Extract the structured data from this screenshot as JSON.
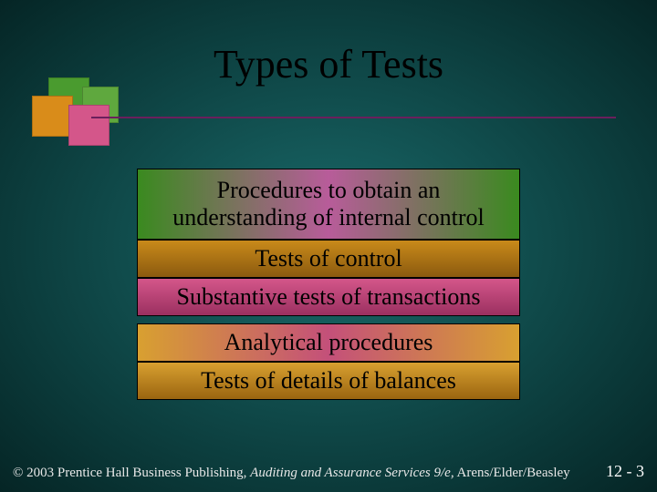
{
  "title": "Types of Tests",
  "decoration": {
    "colors": {
      "green1": "#4a9b2f",
      "orange": "#d98c1a",
      "pink": "#d4568a",
      "green2": "#5fa83e"
    }
  },
  "boxes": [
    {
      "text": "Procedures to obtain an understanding of internal control",
      "gradient": [
        "#3a8a1f",
        "#b85c9a",
        "#3a8a1f"
      ],
      "direction": "right"
    },
    {
      "text": "Tests of control",
      "gradient": [
        "#c98a1a",
        "#8b5a0f"
      ],
      "direction": "bottom"
    },
    {
      "text": "Substantive tests of transactions",
      "gradient": [
        "#d4568a",
        "#9b3060"
      ],
      "direction": "bottom"
    },
    {
      "text": "Analytical procedures",
      "gradient": [
        "#d8a030",
        "#c4507a",
        "#d8a030"
      ],
      "direction": "right"
    },
    {
      "text": "Tests of details of balances",
      "gradient": [
        "#d8a030",
        "#9b6510"
      ],
      "direction": "bottom"
    }
  ],
  "footer": {
    "copyright_prefix": "© 2003 Prentice Hall Business Publishing, ",
    "book_title": "Auditing and Assurance Services 9/e,",
    "authors": " Arens/Elder/Beasley",
    "page": "12 - 3"
  },
  "colors": {
    "background_center": "#1a6b6b",
    "background_edge": "#052525",
    "underline": "#6b1f5c",
    "title_text": "#000000",
    "footer_text": "#e8e8e8"
  },
  "typography": {
    "title_fontsize": 44,
    "box_fontsize": 26,
    "footer_fontsize": 15,
    "font_family": "Times New Roman"
  }
}
